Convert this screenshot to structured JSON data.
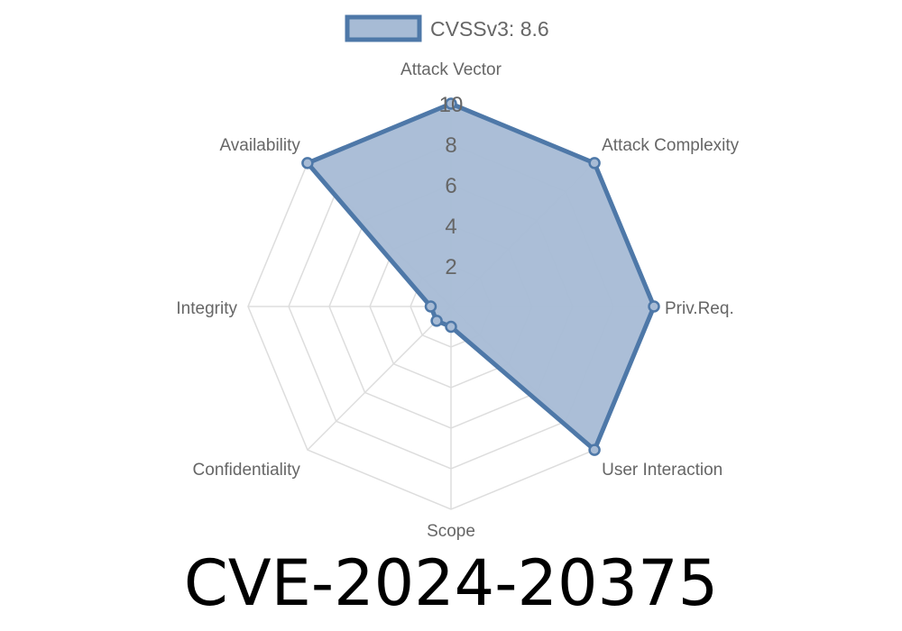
{
  "chart_data": {
    "type": "radar",
    "title": "CVE-2024-20375",
    "axes": [
      "Attack Vector",
      "Attack Complexity",
      "Priv.Req.",
      "User Interaction",
      "Scope",
      "Confidentiality",
      "Integrity",
      "Availability"
    ],
    "series": [
      {
        "name": "CVSSv3: 8.6",
        "values": [
          10,
          10,
          10,
          10,
          1,
          1,
          1,
          10
        ]
      }
    ],
    "rlim": [
      0,
      10
    ],
    "ticks": [
      "2",
      "4",
      "6",
      "8",
      "10"
    ],
    "legend": "top",
    "colors": {
      "fill": "#a7bbd5",
      "stroke": "#4e78a8",
      "grid": "#dddddd"
    }
  }
}
